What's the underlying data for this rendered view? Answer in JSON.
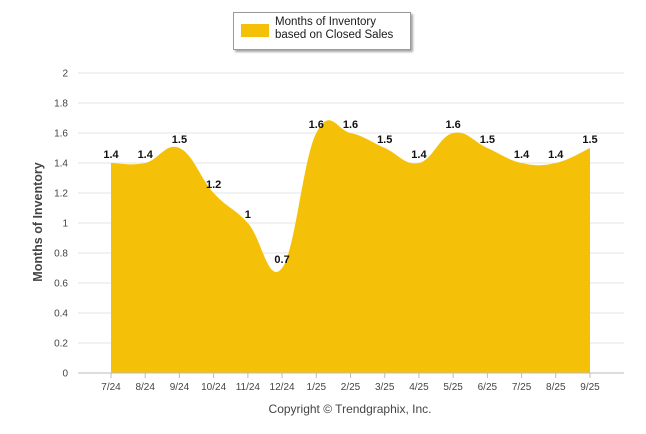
{
  "chart_data": {
    "type": "area",
    "title": "",
    "xlabel": "",
    "ylabel": "Months of Inventory",
    "ylim": [
      0,
      2
    ],
    "yticks": [
      "0",
      "0.2",
      "0.4",
      "0.6",
      "0.8",
      "1",
      "1.2",
      "1.4",
      "1.6",
      "1.8",
      "2"
    ],
    "grid": true,
    "legend_position": "top-center",
    "categories": [
      "7/24",
      "8/24",
      "9/24",
      "10/24",
      "11/24",
      "12/24",
      "1/25",
      "2/25",
      "3/25",
      "4/25",
      "5/25",
      "6/25",
      "7/25",
      "8/25",
      "9/25"
    ],
    "series": [
      {
        "name": "Months of Inventory based on Closed Sales",
        "values": [
          1.4,
          1.4,
          1.5,
          1.2,
          1,
          0.7,
          1.6,
          1.6,
          1.5,
          1.4,
          1.6,
          1.5,
          1.4,
          1.4,
          1.5
        ],
        "labels": [
          "1.4",
          "1.4",
          "1.5",
          "1.2",
          "1",
          "0.7",
          "1.6",
          "1.6",
          "1.5",
          "1.4",
          "1.6",
          "1.5",
          "1.4",
          "1.4",
          "1.5"
        ],
        "color": "#f5c108"
      }
    ]
  },
  "legend": {
    "label": "Months of Inventory based on Closed Sales"
  },
  "footer": {
    "copyright": "Copyright © Trendgraphix, Inc."
  },
  "colors": {
    "area": "#f5c108",
    "grid": "#e6e6e6",
    "axis": "#bbbbbb"
  }
}
